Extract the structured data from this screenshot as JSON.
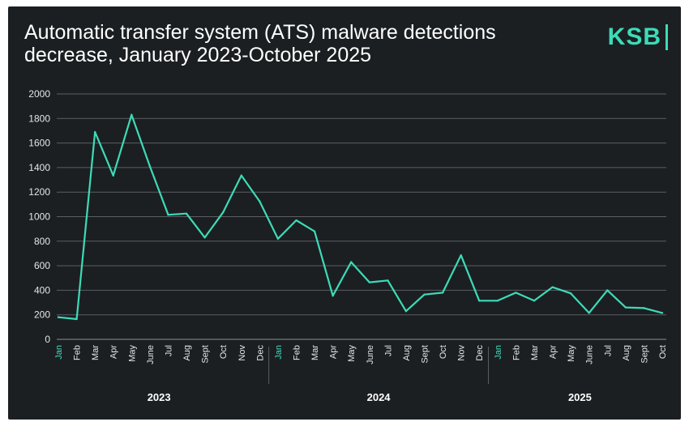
{
  "title": "Automatic transfer system (ATS) malware detections decrease, January 2023-October 2025",
  "logo": {
    "text": "KSB"
  },
  "colors": {
    "background": "#1b1f22",
    "line": "#3ddbb7",
    "grid": "#5a5f63",
    "text": "#e6e6e6",
    "accent": "#3ddbb7"
  },
  "chart_data": {
    "type": "line",
    "title": "Automatic transfer system (ATS) malware detections decrease, January 2023-October 2025",
    "xlabel": "",
    "ylabel": "",
    "ylim": [
      0,
      2000
    ],
    "yticks": [
      0,
      200,
      400,
      600,
      800,
      1000,
      1200,
      1400,
      1600,
      1800,
      2000
    ],
    "grid": true,
    "years": [
      {
        "label": "2023",
        "start": 0,
        "end": 11
      },
      {
        "label": "2024",
        "start": 12,
        "end": 23
      },
      {
        "label": "2025",
        "start": 24,
        "end": 33
      }
    ],
    "categories": [
      "Jan",
      "Feb",
      "Mar",
      "Apr",
      "May",
      "June",
      "Jul",
      "Aug",
      "Sept",
      "Oct",
      "Nov",
      "Dec",
      "Jan",
      "Feb",
      "Mar",
      "Apr",
      "May",
      "June",
      "Jul",
      "Aug",
      "Sept",
      "Oct",
      "Nov",
      "Dec",
      "Jan",
      "Feb",
      "Mar",
      "Apr",
      "May",
      "June",
      "Jul",
      "Aug",
      "Sept",
      "Oct"
    ],
    "highlight_categories": [
      0,
      12,
      24
    ],
    "series": [
      {
        "name": "ATS malware detections",
        "values": [
          180,
          165,
          1690,
          1335,
          1830,
          1410,
          1015,
          1025,
          830,
          1035,
          1335,
          1125,
          820,
          970,
          880,
          355,
          630,
          465,
          480,
          230,
          365,
          380,
          685,
          315,
          315,
          380,
          315,
          425,
          375,
          215,
          400,
          260,
          255,
          215
        ]
      }
    ]
  }
}
